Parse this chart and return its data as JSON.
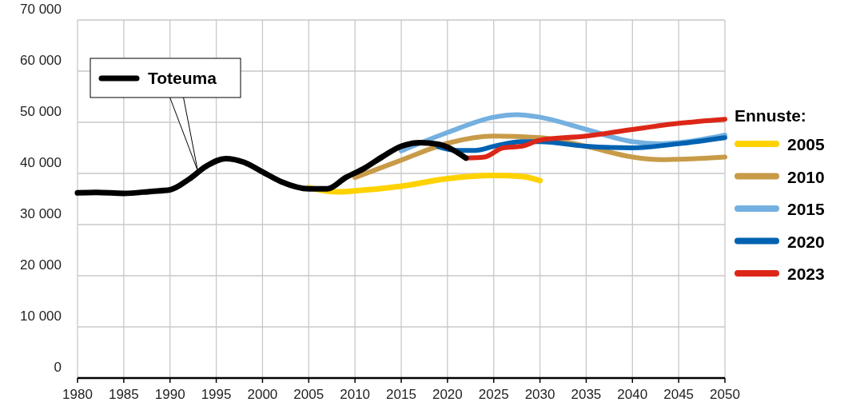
{
  "chart_data": {
    "type": "line",
    "legend_title": "Ennuste:",
    "legend": "right",
    "grid": true,
    "line_style": "solid",
    "marker": "none",
    "xlim": [
      1980,
      2050
    ],
    "xticks": [
      1980,
      1985,
      1990,
      1995,
      2000,
      2005,
      2010,
      2015,
      2020,
      2025,
      2030,
      2035,
      2040,
      2045,
      2050
    ],
    "ylim": [
      0,
      70000
    ],
    "yticks": [
      {
        "value": 0,
        "label": "0"
      },
      {
        "value": 10000,
        "label": "10 000"
      },
      {
        "value": 20000,
        "label": "20 000"
      },
      {
        "value": 30000,
        "label": "30 000"
      },
      {
        "value": 40000,
        "label": "40 000"
      },
      {
        "value": 50000,
        "label": "50 000"
      },
      {
        "value": 60000,
        "label": "60 000"
      },
      {
        "value": 70000,
        "label": "70 000"
      }
    ],
    "series": [
      {
        "name": "Toteuma",
        "color": "#000000",
        "x": [
          1980,
          1982,
          1985,
          1988,
          1990,
          1992,
          1994,
          1996,
          1998,
          2000,
          2002,
          2005,
          2007,
          2009,
          2011,
          2013,
          2015,
          2017,
          2019,
          2022
        ],
        "values": [
          36200,
          36300,
          36100,
          36500,
          36800,
          38800,
          41500,
          42900,
          42200,
          40300,
          38400,
          37000,
          37000,
          39200,
          41000,
          43300,
          45300,
          46000,
          45700,
          43000
        ]
      },
      {
        "name": "2005",
        "color": "#ffd200",
        "x": [
          2005,
          2008,
          2010,
          2015,
          2020,
          2025,
          2028,
          2030
        ],
        "values": [
          37200,
          36400,
          36600,
          37500,
          39000,
          39600,
          39400,
          38600
        ]
      },
      {
        "name": "2010",
        "color": "#c89b48",
        "x": [
          2010,
          2015,
          2020,
          2025,
          2030,
          2035,
          2040,
          2043,
          2050
        ],
        "values": [
          39200,
          42600,
          45900,
          47300,
          47000,
          45300,
          43200,
          42700,
          43200
        ]
      },
      {
        "name": "2015",
        "color": "#74b0e0",
        "x": [
          2015,
          2020,
          2025,
          2027.5,
          2030,
          2035,
          2040,
          2043,
          2045,
          2050
        ],
        "values": [
          44400,
          48000,
          51000,
          51500,
          51000,
          48600,
          46200,
          45800,
          46000,
          47500
        ]
      },
      {
        "name": "2020",
        "color": "#0062b1",
        "x": [
          2019,
          2021,
          2023,
          2025,
          2028,
          2030,
          2035,
          2040,
          2045,
          2050
        ],
        "values": [
          45200,
          44500,
          44500,
          45300,
          46200,
          46200,
          45300,
          45000,
          45800,
          47000
        ]
      },
      {
        "name": "2023",
        "color": "#dc2718",
        "x": [
          2022,
          2024,
          2026,
          2028,
          2030,
          2035,
          2040,
          2045,
          2050
        ],
        "values": [
          43000,
          43200,
          45000,
          45300,
          46500,
          47300,
          48600,
          49800,
          50600
        ]
      }
    ]
  }
}
